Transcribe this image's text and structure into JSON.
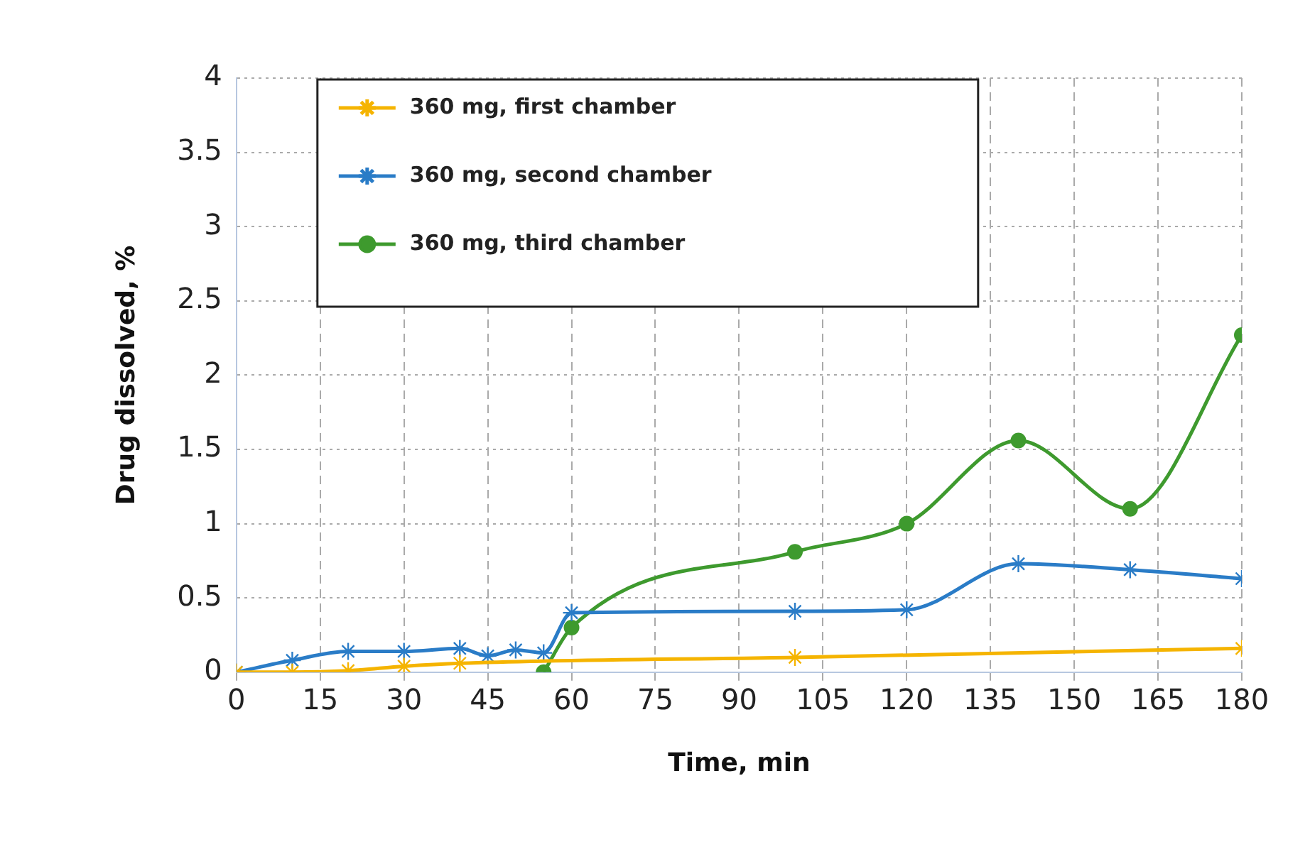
{
  "chart_data": {
    "type": "line",
    "xlabel": "Time, min",
    "ylabel": "Drug dissolved, %",
    "xlim": [
      0,
      180
    ],
    "xticks": [
      0,
      15,
      30,
      45,
      60,
      75,
      90,
      105,
      120,
      135,
      150,
      165,
      180
    ],
    "ylim": [
      0,
      4
    ],
    "yticks": [
      0,
      0.5,
      1,
      1.5,
      2,
      2.5,
      3,
      3.5,
      4
    ],
    "grid": true,
    "legend": "top left",
    "series": [
      {
        "name": "360 mg, first chamber",
        "color": "#f5b400",
        "marker": "cross",
        "x": [
          0,
          10,
          20,
          30,
          40,
          100,
          180
        ],
        "values": [
          0,
          0,
          0.01,
          0.04,
          0.06,
          0.1,
          0.16
        ]
      },
      {
        "name": "360 mg, second chamber",
        "color": "#2a7cc7",
        "marker": "cross",
        "x": [
          0,
          10,
          20,
          30,
          40,
          45,
          50,
          55,
          60,
          100,
          120,
          140,
          160,
          180
        ],
        "values": [
          0,
          0.08,
          0.14,
          0.14,
          0.16,
          0.11,
          0.15,
          0.13,
          0.4,
          0.41,
          0.42,
          0.73,
          0.69,
          0.63
        ]
      },
      {
        "name": "360 mg, third chamber",
        "color": "#3e9a2e",
        "marker": "circle",
        "x": [
          55,
          60,
          100,
          120,
          140,
          160,
          180
        ],
        "values": [
          0,
          0.3,
          0.81,
          1,
          1.56,
          1.1,
          2.27
        ]
      }
    ]
  }
}
